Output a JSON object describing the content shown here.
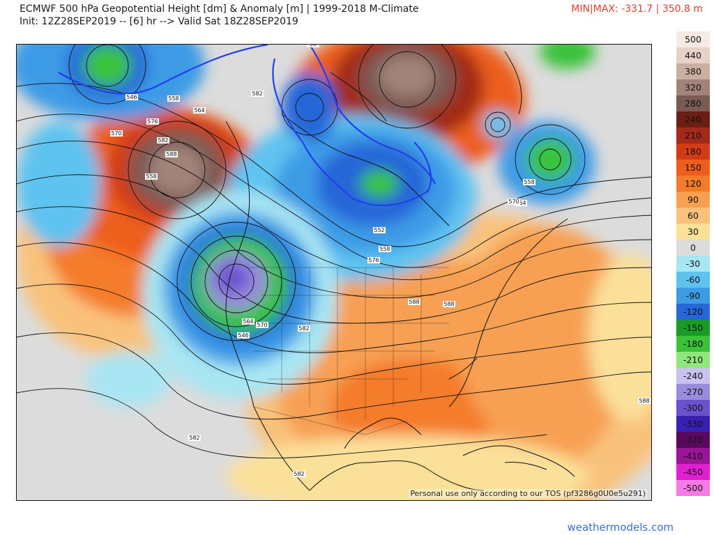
{
  "header": {
    "title_line1": "ECMWF 500 hPa Geopotential Height [dm] & Anomaly [m] | 1999-2018 M-Climate",
    "title_line2": "Init: 12Z28SEP2019 -- [6] hr --> Valid Sat 18Z28SEP2019",
    "minmax": "MIN|MAX: -331.7 | 350.8 m"
  },
  "map": {
    "tos_note": "Personal use only according to our TOS (pf3286g0U0e5u291)",
    "contour_labels": [
      "546",
      "558",
      "564",
      "570",
      "576",
      "582",
      "588",
      "558",
      "564",
      "570",
      "546",
      "552",
      "558",
      "576",
      "582",
      "588",
      "588",
      "582",
      "558",
      "564",
      "570",
      "582",
      "588",
      "58",
      "582"
    ]
  },
  "colorbar": {
    "items": [
      {
        "label": "500",
        "color": "#f7e9e4"
      },
      {
        "label": "440",
        "color": "#e8d2c8"
      },
      {
        "label": "380",
        "color": "#cbaea2"
      },
      {
        "label": "320",
        "color": "#a1837a"
      },
      {
        "label": "280",
        "color": "#7a5a52"
      },
      {
        "label": "240",
        "color": "#6b1f14"
      },
      {
        "label": "210",
        "color": "#a12b18"
      },
      {
        "label": "180",
        "color": "#d23b16"
      },
      {
        "label": "150",
        "color": "#ec5e1c"
      },
      {
        "label": "120",
        "color": "#f47b2a"
      },
      {
        "label": "90",
        "color": "#f7a052"
      },
      {
        "label": "60",
        "color": "#f9c27c"
      },
      {
        "label": "30",
        "color": "#fbe09a"
      },
      {
        "label": "0",
        "color": "#dcdcdc"
      },
      {
        "label": "-30",
        "color": "#a8e6f3"
      },
      {
        "label": "-60",
        "color": "#5fc3f0"
      },
      {
        "label": "-90",
        "color": "#3d9be6"
      },
      {
        "label": "-120",
        "color": "#2566d8"
      },
      {
        "label": "-150",
        "color": "#1a9a26"
      },
      {
        "label": "-180",
        "color": "#3bc23a"
      },
      {
        "label": "-210",
        "color": "#8fe67d"
      },
      {
        "label": "-240",
        "color": "#c8c3ee"
      },
      {
        "label": "-270",
        "color": "#9a8be0"
      },
      {
        "label": "-300",
        "color": "#6a52cf"
      },
      {
        "label": "-330",
        "color": "#3a1fb5"
      },
      {
        "label": "-370",
        "color": "#5a0a5e"
      },
      {
        "label": "-410",
        "color": "#9a1497"
      },
      {
        "label": "-450",
        "color": "#e21fd0"
      },
      {
        "label": "-500",
        "color": "#f57ae6"
      }
    ]
  },
  "footer": {
    "site": "weathermodels.com"
  }
}
